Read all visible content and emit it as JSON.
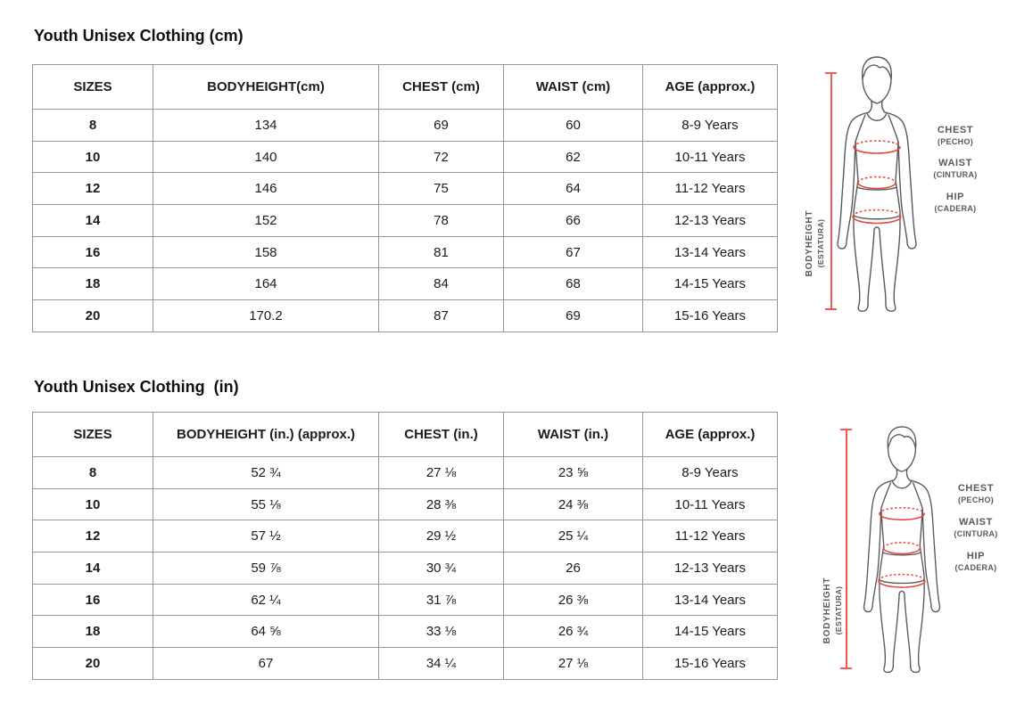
{
  "page": {
    "background": "#ffffff"
  },
  "tables": [
    {
      "title": "Youth Unisex Clothing (cm)",
      "headers": [
        "SIZES",
        "BODYHEIGHT(cm)",
        "CHEST (cm)",
        "WAIST (cm)",
        "AGE (approx.)"
      ],
      "rows": [
        [
          "8",
          "134",
          "69",
          "60",
          "8-9 Years"
        ],
        [
          "10",
          "140",
          "72",
          "62",
          "10-11 Years"
        ],
        [
          "12",
          "146",
          "75",
          "64",
          "11-12 Years"
        ],
        [
          "14",
          "152",
          "78",
          "66",
          "12-13 Years"
        ],
        [
          "16",
          "158",
          "81",
          "67",
          "13-14 Years"
        ],
        [
          "18",
          "164",
          "84",
          "68",
          "14-15 Years"
        ],
        [
          "20",
          "170.2",
          "87",
          "69",
          "15-16 Years"
        ]
      ]
    },
    {
      "title": "Youth Unisex Clothing  (in)",
      "headers": [
        "SIZES",
        "BODYHEIGHT (in.) (approx.)",
        "CHEST (in.)",
        "WAIST (in.)",
        "AGE (approx.)"
      ],
      "rows": [
        [
          "8",
          "52 ¾",
          "27 ⅛",
          "23 ⅝",
          "8-9 Years"
        ],
        [
          "10",
          "55 ⅛",
          "28 ⅜",
          "24 ⅜",
          "10-11 Years"
        ],
        [
          "12",
          "57 ½",
          "29 ½",
          "25 ¼",
          "11-12 Years"
        ],
        [
          "14",
          "59 ⅞",
          "30 ¾",
          "26",
          "12-13 Years"
        ],
        [
          "16",
          "62 ¼",
          "31 ⅞",
          "26 ⅜",
          "13-14 Years"
        ],
        [
          "18",
          "64 ⅝",
          "33 ⅛",
          "26 ¾",
          "14-15 Years"
        ],
        [
          "20",
          "67",
          "34 ¼",
          "27 ⅛",
          "15-16 Years"
        ]
      ]
    }
  ],
  "figure": {
    "chest": "CHEST",
    "chest_sub": "(PECHO)",
    "waist": "WAIST",
    "waist_sub": "(CINTURA)",
    "hip": "HIP",
    "hip_sub": "(CADERA)",
    "bodyheight": "BODYHEIGHT",
    "bodyheight_sub": "(ESTATURA)"
  },
  "colors": {
    "measure_red": "#ee5a50",
    "ellipse_red": "#e8473f",
    "outline_gray": "#58595b",
    "border_gray": "#979797"
  }
}
